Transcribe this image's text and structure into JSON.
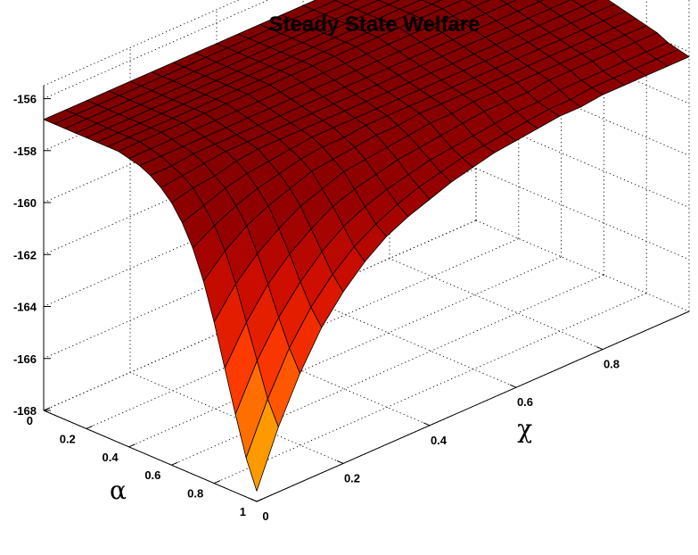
{
  "chart_data": {
    "type": "surface",
    "title": "Steady State Welfare",
    "xlabel": "χ",
    "ylabel": "α",
    "zlabel": "",
    "xlim": [
      0,
      1
    ],
    "ylim": [
      0,
      1
    ],
    "zlim": [
      -168,
      -155.5
    ],
    "x_ticks": [
      "0",
      "0.2",
      "0.4",
      "0.6",
      "0.8"
    ],
    "x_tick_values": [
      0,
      0.2,
      0.4,
      0.6,
      0.8
    ],
    "y_ticks": [
      "0",
      "0.2",
      "0.4",
      "0.6",
      "0.8",
      "1"
    ],
    "y_tick_values": [
      0,
      0.2,
      0.4,
      0.6,
      0.8,
      1
    ],
    "z_ticks": [
      "-156",
      "-158",
      "-160",
      "-162",
      "-164",
      "-166",
      "-168"
    ],
    "z_tick_values": [
      -156,
      -158,
      -160,
      -162,
      -164,
      -166,
      -168
    ],
    "grid": true,
    "colormap": "autumn",
    "colors": {
      "low": "#ffcc00",
      "high": "#800000"
    },
    "x": [
      0,
      0.05,
      0.1,
      0.15,
      0.2,
      0.25,
      0.3,
      0.35,
      0.4,
      0.45,
      0.5,
      0.55,
      0.6,
      0.65,
      0.7,
      0.75,
      0.8,
      0.85,
      0.9,
      0.95,
      1.0
    ],
    "y": [
      0,
      0.05,
      0.1,
      0.15,
      0.2,
      0.25,
      0.3,
      0.35,
      0.4,
      0.45,
      0.5,
      0.55,
      0.6,
      0.65,
      0.7,
      0.75,
      0.8,
      0.85,
      0.9,
      0.95,
      1.0
    ],
    "z": [
      [
        -156.8,
        -156.8,
        -156.8,
        -156.8,
        -156.8,
        -156.8,
        -156.8,
        -156.8,
        -156.8,
        -156.8,
        -156.8,
        -156.8,
        -156.8,
        -156.8,
        -156.8,
        -156.8,
        -156.8,
        -156.8,
        -156.8,
        -156.8,
        -156.8
      ],
      [
        -156.8,
        -156.8,
        -156.8,
        -156.8,
        -156.8,
        -156.8,
        -156.8,
        -156.8,
        -156.8,
        -156.8,
        -156.8,
        -156.8,
        -156.8,
        -156.8,
        -156.8,
        -156.8,
        -156.8,
        -156.8,
        -156.8,
        -156.8,
        -156.8
      ],
      [
        -156.8,
        -156.8,
        -156.8,
        -156.8,
        -156.8,
        -156.8,
        -156.8,
        -156.8,
        -156.8,
        -156.8,
        -156.8,
        -156.8,
        -156.8,
        -156.8,
        -156.8,
        -156.8,
        -156.8,
        -156.8,
        -156.8,
        -156.8,
        -156.8
      ],
      [
        -156.8,
        -156.8,
        -156.8,
        -156.8,
        -156.8,
        -156.8,
        -156.8,
        -156.8,
        -156.8,
        -156.8,
        -156.8,
        -156.8,
        -156.8,
        -156.8,
        -156.8,
        -156.8,
        -156.8,
        -156.8,
        -156.8,
        -156.8,
        -156.8
      ],
      [
        -156.8,
        -156.8,
        -156.8,
        -156.8,
        -156.8,
        -156.8,
        -156.8,
        -156.8,
        -156.8,
        -156.8,
        -156.8,
        -156.8,
        -156.8,
        -156.8,
        -156.8,
        -156.8,
        -156.8,
        -156.8,
        -156.8,
        -156.8,
        -156.8
      ],
      [
        -156.8,
        -156.8,
        -156.8,
        -156.8,
        -156.8,
        -156.8,
        -156.8,
        -156.8,
        -156.8,
        -156.8,
        -156.8,
        -156.8,
        -156.8,
        -156.8,
        -156.8,
        -156.8,
        -156.8,
        -156.8,
        -156.8,
        -156.8,
        -156.8
      ],
      [
        -156.8,
        -156.8,
        -156.8,
        -156.8,
        -156.8,
        -156.8,
        -156.8,
        -156.8,
        -156.8,
        -156.8,
        -156.8,
        -156.8,
        -156.8,
        -156.8,
        -156.8,
        -156.8,
        -156.8,
        -156.8,
        -156.8,
        -156.8,
        -156.8
      ],
      [
        -156.8,
        -156.8,
        -156.8,
        -156.8,
        -156.8,
        -156.8,
        -156.8,
        -156.8,
        -156.8,
        -156.8,
        -156.8,
        -156.8,
        -156.8,
        -156.8,
        -156.8,
        -156.8,
        -156.8,
        -156.8,
        -156.8,
        -156.8,
        -156.8
      ],
      [
        -156.9,
        -156.9,
        -156.9,
        -156.9,
        -156.9,
        -156.9,
        -156.9,
        -156.9,
        -156.9,
        -156.9,
        -156.9,
        -156.9,
        -156.9,
        -156.9,
        -156.9,
        -156.9,
        -156.9,
        -156.9,
        -156.9,
        -156.9,
        -156.9
      ],
      [
        -157.0,
        -157.0,
        -157.0,
        -157.0,
        -157.0,
        -157.0,
        -157.0,
        -157.0,
        -157.0,
        -157.0,
        -157.0,
        -157.0,
        -157.0,
        -157.0,
        -157.0,
        -157.0,
        -157.0,
        -157.0,
        -157.0,
        -157.0,
        -157.0
      ],
      [
        -157.2,
        -157.2,
        -157.1,
        -157.1,
        -157.1,
        -157.1,
        -157.1,
        -157.1,
        -157.1,
        -157.1,
        -157.1,
        -157.1,
        -157.1,
        -157.1,
        -157.1,
        -157.1,
        -157.1,
        -157.1,
        -157.1,
        -157.1,
        -157.1
      ],
      [
        -157.5,
        -157.4,
        -157.3,
        -157.2,
        -157.2,
        -157.2,
        -157.2,
        -157.2,
        -157.2,
        -157.2,
        -157.2,
        -157.2,
        -157.2,
        -157.2,
        -157.2,
        -157.2,
        -157.2,
        -157.2,
        -157.2,
        -157.2,
        -157.2
      ],
      [
        -157.9,
        -157.7,
        -157.6,
        -157.4,
        -157.3,
        -157.3,
        -157.3,
        -157.3,
        -157.3,
        -157.3,
        -157.3,
        -157.3,
        -157.3,
        -157.3,
        -157.3,
        -157.3,
        -157.3,
        -157.3,
        -157.3,
        -157.3,
        -157.3
      ],
      [
        -158.5,
        -158.2,
        -157.9,
        -157.7,
        -157.6,
        -157.5,
        -157.4,
        -157.4,
        -157.4,
        -157.4,
        -157.4,
        -157.4,
        -157.4,
        -157.4,
        -157.4,
        -157.4,
        -157.4,
        -157.4,
        -157.4,
        -157.4,
        -157.4
      ],
      [
        -159.3,
        -158.8,
        -158.4,
        -158.1,
        -157.9,
        -157.7,
        -157.6,
        -157.6,
        -157.5,
        -157.5,
        -157.5,
        -157.5,
        -157.5,
        -157.5,
        -157.5,
        -157.5,
        -157.5,
        -157.5,
        -157.5,
        -157.5,
        -157.5
      ],
      [
        -160.4,
        -159.6,
        -159.0,
        -158.6,
        -158.3,
        -158.0,
        -157.9,
        -157.8,
        -157.7,
        -157.7,
        -157.6,
        -157.6,
        -157.6,
        -157.6,
        -157.6,
        -157.6,
        -157.6,
        -157.6,
        -157.6,
        -157.6,
        -157.6
      ],
      [
        -161.8,
        -160.7,
        -159.9,
        -159.3,
        -158.8,
        -158.5,
        -158.2,
        -158.1,
        -158.0,
        -157.9,
        -157.8,
        -157.8,
        -157.7,
        -157.7,
        -157.7,
        -157.7,
        -157.7,
        -157.7,
        -157.7,
        -157.7,
        -157.7
      ],
      [
        -163.4,
        -162.0,
        -160.9,
        -160.1,
        -159.5,
        -159.0,
        -158.7,
        -158.5,
        -158.3,
        -158.2,
        -158.1,
        -158.0,
        -157.9,
        -157.9,
        -157.9,
        -157.8,
        -157.8,
        -157.8,
        -157.8,
        -157.8,
        -157.8
      ],
      [
        -165.0,
        -163.3,
        -162.0,
        -161.0,
        -160.2,
        -159.6,
        -159.2,
        -158.9,
        -158.7,
        -158.5,
        -158.4,
        -158.3,
        -158.2,
        -158.1,
        -158.1,
        -158.0,
        -158.0,
        -158.0,
        -158.0,
        -158.0,
        -158.0
      ],
      [
        -166.5,
        -164.6,
        -163.0,
        -161.8,
        -160.9,
        -160.2,
        -159.7,
        -159.3,
        -159.0,
        -158.8,
        -158.6,
        -158.5,
        -158.4,
        -158.3,
        -158.2,
        -158.2,
        -158.1,
        -158.1,
        -158.1,
        -158.1,
        -158.1
      ],
      [
        -167.6,
        -165.5,
        -163.8,
        -162.4,
        -161.4,
        -160.6,
        -160.0,
        -159.6,
        -159.3,
        -159.0,
        -158.8,
        -158.6,
        -158.5,
        -158.4,
        -158.3,
        -158.3,
        -158.2,
        -158.2,
        -158.2,
        -158.2,
        -158.2
      ]
    ]
  }
}
